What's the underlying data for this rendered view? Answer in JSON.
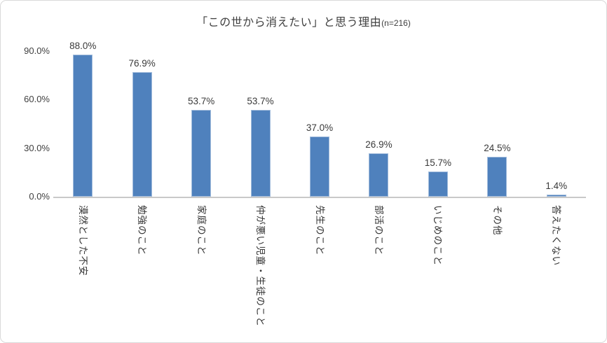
{
  "chart_data": {
    "type": "bar",
    "title": "「この世から消えたい」と思う理由",
    "title_suffix": "(n=216)",
    "categories": [
      "漠然とした不安",
      "勉強のこと",
      "家庭のこと",
      "仲が悪い児童・生徒のこと",
      "先生のこと",
      "部活のこと",
      "いじめのこと",
      "その他",
      "答えたくない"
    ],
    "values": [
      88.0,
      76.9,
      53.7,
      53.7,
      37.0,
      26.9,
      15.7,
      24.5,
      1.4
    ],
    "value_labels": [
      "88.0%",
      "76.9%",
      "53.7%",
      "53.7%",
      "37.0%",
      "26.9%",
      "15.7%",
      "24.5%",
      "1.4%"
    ],
    "xlabel": "",
    "ylabel": "",
    "ylim": [
      0,
      90
    ],
    "y_ticks": [
      {
        "value": 90,
        "label": "90.0%"
      },
      {
        "value": 60,
        "label": "60.0%"
      },
      {
        "value": 30,
        "label": "30.0%"
      },
      {
        "value": 0,
        "label": "0.0%"
      }
    ],
    "grid": false,
    "legend_position": "none",
    "bar_color": "#4F81BD",
    "axis_line_color": "#C9C9C9",
    "frame_border_color": "#D9D9D9"
  }
}
